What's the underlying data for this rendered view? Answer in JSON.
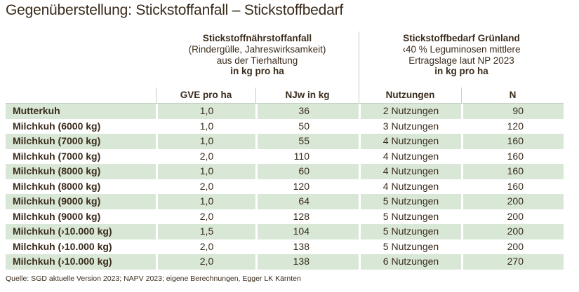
{
  "title": "Gegenüberstellung: Stickstoffanfall – Stickstoffbedarf",
  "table": {
    "group1": {
      "line1": "Stickstoffnährstoffanfall",
      "line2": "(Rindergülle, Jahreswirksamkeit)",
      "line3": "aus der Tierhaltung",
      "line4": "in kg pro ha"
    },
    "group2": {
      "line1": "Stickstoffbedarf Grünland",
      "line2": "‹40 % Leguminosen mittlere",
      "line3": "Ertragslage laut NP 2023",
      "line4": "in kg pro ha"
    },
    "columns": {
      "gve": "GVE pro ha",
      "njw": "NJw in kg",
      "nutzungen": "Nutzungen",
      "n": "N"
    },
    "rows": [
      {
        "label": "Mutterkuh",
        "gve": "1,0",
        "njw": "36",
        "nutzungen": "2 Nutzungen",
        "n": "90"
      },
      {
        "label": "Milchkuh (6000 kg)",
        "gve": "1,0",
        "njw": "50",
        "nutzungen": "3 Nutzungen",
        "n": "120"
      },
      {
        "label": "Milchkuh (7000 kg)",
        "gve": "1,0",
        "njw": "55",
        "nutzungen": "4 Nutzungen",
        "n": "160"
      },
      {
        "label": "Milchkuh (7000 kg)",
        "gve": "2,0",
        "njw": "110",
        "nutzungen": "4 Nutzungen",
        "n": "160"
      },
      {
        "label": "Milchkuh (8000 kg)",
        "gve": "1,0",
        "njw": "60",
        "nutzungen": "4 Nutzungen",
        "n": "160"
      },
      {
        "label": "Milchkuh (8000 kg)",
        "gve": "2,0",
        "njw": "120",
        "nutzungen": "4 Nutzungen",
        "n": "160"
      },
      {
        "label": "Milchkuh (9000 kg)",
        "gve": "1,0",
        "njw": "64",
        "nutzungen": "5 Nutzungen",
        "n": "200"
      },
      {
        "label": "Milchkuh (9000 kg)",
        "gve": "2,0",
        "njw": "128",
        "nutzungen": "5 Nutzungen",
        "n": "200"
      },
      {
        "label": "Milchkuh (›10.000 kg)",
        "gve": "1,5",
        "njw": "104",
        "nutzungen": "5 Nutzungen",
        "n": "200"
      },
      {
        "label": "Milchkuh (›10.000 kg)",
        "gve": "2,0",
        "njw": "138",
        "nutzungen": "5 Nutzungen",
        "n": "200"
      },
      {
        "label": "Milchkuh (›10.000 kg)",
        "gve": "2,0",
        "njw": "138",
        "nutzungen": "6 Nutzungen",
        "n": "270"
      }
    ]
  },
  "source": "Quelle: SGD aktuelle Version 2023; NAPV 2023; eigene Berechnungen, Egger LK Kärnten",
  "colors": {
    "row_green": "#d9e8d6",
    "text": "#3a2b1c",
    "divider": "#c3cdc3"
  },
  "chart_data": {
    "type": "table",
    "title": "Gegenüberstellung: Stickstoffanfall – Stickstoffbedarf",
    "column_groups": [
      {
        "label": "Stickstoffnährstoffanfall (Rindergülle, Jahreswirksamkeit) aus der Tierhaltung in kg pro ha",
        "columns": [
          "GVE pro ha",
          "NJw in kg"
        ]
      },
      {
        "label": "Stickstoffbedarf Grünland ‹40 % Leguminosen mittlere Ertragslage laut NP 2023 in kg pro ha",
        "columns": [
          "Nutzungen",
          "N"
        ]
      }
    ],
    "columns": [
      "",
      "GVE pro ha",
      "NJw in kg",
      "Nutzungen",
      "N"
    ],
    "rows": [
      [
        "Mutterkuh",
        "1,0",
        36,
        "2 Nutzungen",
        90
      ],
      [
        "Milchkuh (6000 kg)",
        "1,0",
        50,
        "3 Nutzungen",
        120
      ],
      [
        "Milchkuh (7000 kg)",
        "1,0",
        55,
        "4 Nutzungen",
        160
      ],
      [
        "Milchkuh (7000 kg)",
        "2,0",
        110,
        "4 Nutzungen",
        160
      ],
      [
        "Milchkuh (8000 kg)",
        "1,0",
        60,
        "4 Nutzungen",
        160
      ],
      [
        "Milchkuh (8000 kg)",
        "2,0",
        120,
        "4 Nutzungen",
        160
      ],
      [
        "Milchkuh (9000 kg)",
        "1,0",
        64,
        "5 Nutzungen",
        200
      ],
      [
        "Milchkuh (9000 kg)",
        "2,0",
        128,
        "5 Nutzungen",
        200
      ],
      [
        "Milchkuh (›10.000 kg)",
        "1,5",
        104,
        "5 Nutzungen",
        200
      ],
      [
        "Milchkuh (›10.000 kg)",
        "2,0",
        138,
        "5 Nutzungen",
        200
      ],
      [
        "Milchkuh (›10.000 kg)",
        "2,0",
        138,
        "6 Nutzungen",
        270
      ]
    ],
    "source": "Quelle: SGD aktuelle Version 2023; NAPV 2023; eigene Berechnungen, Egger LK Kärnten"
  }
}
